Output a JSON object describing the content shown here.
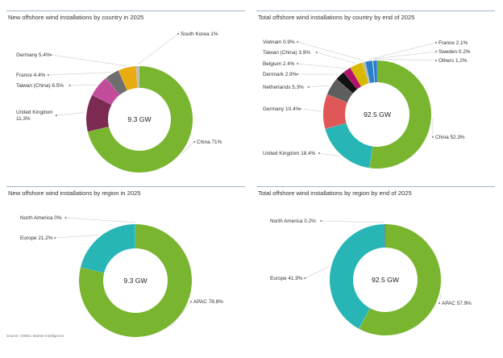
{
  "source": "Source: GWEC Market Intelligence",
  "colors": {
    "China": "#7ab530",
    "United Kingdom": "#7c2a52",
    "Taiwan (China)": "#c34b9c",
    "France": "#6e6e6e",
    "Germany": "#e8ac11",
    "South Korea": "#b9b9b9",
    "Netherlands": "#5e5e5e",
    "Denmark": "#111111",
    "Belgium": "#b0126e",
    "Vietnam": "#b9b9b9",
    "Sweden": "#e0e0e0",
    "Others": "#2a7fc9",
    "APAC": "#7ab530",
    "Europe": "#27b5b5",
    "North America": "#5e5e5e",
    "GermanyTotal": "#e05757",
    "UKTotal": "#27b5b5",
    "TaiwanTotal": "#d8b800",
    "FranceTotal": "#222222"
  },
  "chart_data": [
    {
      "type": "pie",
      "title": "New offshore wind installations by country in 2025",
      "center_label": "9.3 GW",
      "slices": [
        {
          "name": "China",
          "value": 71,
          "label": "China 71%"
        },
        {
          "name": "United Kingdom",
          "value": 11.3,
          "label": "United Kingdom|11.3%"
        },
        {
          "name": "Taiwan (China)",
          "value": 6.5,
          "label": "Taiwan (China) 6.5%"
        },
        {
          "name": "France",
          "value": 4.4,
          "label": "France 4.4%"
        },
        {
          "name": "Germany",
          "value": 5.4,
          "label": "Germany 5.4%"
        },
        {
          "name": "South Korea",
          "value": 1,
          "label": "South Korea 1%"
        }
      ]
    },
    {
      "type": "pie",
      "title": "Total offshore wind installations by country by end of 2025",
      "center_label": "92.5 GW",
      "slices": [
        {
          "name": "China",
          "value": 52.3,
          "label": "China 52.3%"
        },
        {
          "name": "United Kingdom",
          "value": 18.4,
          "label": "United Kingdom 18.4%"
        },
        {
          "name": "Germany",
          "value": 10.4,
          "label": "Germany 10.4%"
        },
        {
          "name": "Netherlands",
          "value": 5.3,
          "label": "Netherlands 5.3%"
        },
        {
          "name": "Denmark",
          "value": 2.9,
          "label": "Denmark 2.9%"
        },
        {
          "name": "Belgium",
          "value": 2.4,
          "label": "Belgium 2.4%"
        },
        {
          "name": "Taiwan (China)",
          "value": 3.9,
          "label": "Taiwan (China) 3.9%"
        },
        {
          "name": "Vietnam",
          "value": 0.9,
          "label": "Vietnam 0.9%"
        },
        {
          "name": "France",
          "value": 2.1,
          "label": "France 2.1%"
        },
        {
          "name": "Sweden",
          "value": 0.2,
          "label": "Sweden 0.2%"
        },
        {
          "name": "Others",
          "value": 1.2,
          "label": "Others 1.2%"
        }
      ]
    },
    {
      "type": "pie",
      "title": "New offshore wind installations by region in 2025",
      "center_label": "9.3 GW",
      "slices": [
        {
          "name": "APAC",
          "value": 78.8,
          "label": "APAC 78.8%"
        },
        {
          "name": "Europe",
          "value": 21.2,
          "label": "Europe 21.2%"
        },
        {
          "name": "North America",
          "value": 0,
          "label": "North America 0%"
        }
      ]
    },
    {
      "type": "pie",
      "title": "Total offshore wind installations by region by end of 2025",
      "center_label": "92.5 GW",
      "slices": [
        {
          "name": "APAC",
          "value": 57.9,
          "label": "APAC 57.9%"
        },
        {
          "name": "Europe",
          "value": 41.9,
          "label": "Europe 41.9%"
        },
        {
          "name": "North America",
          "value": 0.2,
          "label": "North America 0.2%"
        }
      ]
    }
  ]
}
